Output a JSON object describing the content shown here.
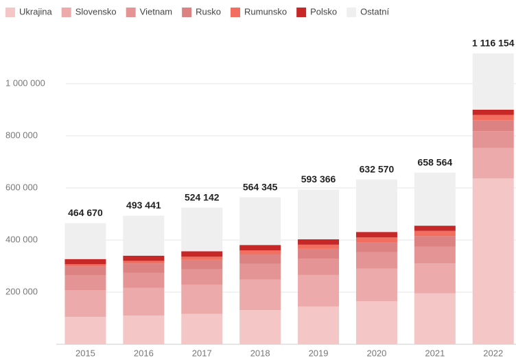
{
  "chart_data": {
    "type": "stacked-bar",
    "categories": [
      "2015",
      "2016",
      "2017",
      "2018",
      "2019",
      "2020",
      "2021",
      "2022"
    ],
    "series": [
      {
        "name": "Ukrajina",
        "color": "#f4c6c6",
        "values": [
          105000,
          110000,
          117000,
          131000,
          145000,
          165000,
          196000,
          636000
        ]
      },
      {
        "name": "Slovensko",
        "color": "#ecaaaa",
        "values": [
          102000,
          107000,
          112000,
          117000,
          121000,
          125000,
          114000,
          117000
        ]
      },
      {
        "name": "Vietnam",
        "color": "#e49494",
        "values": [
          57000,
          58000,
          59000,
          61000,
          62000,
          63000,
          64000,
          65000
        ]
      },
      {
        "name": "Rusko",
        "color": "#dc8282",
        "values": [
          35000,
          35000,
          36000,
          37000,
          38000,
          39000,
          41000,
          42000
        ]
      },
      {
        "name": "Rumunsko",
        "color": "#f26e5e",
        "values": [
          8000,
          10000,
          12000,
          14000,
          16000,
          18000,
          20000,
          20000
        ]
      },
      {
        "name": "Polsko",
        "color": "#c62828",
        "values": [
          20000,
          20000,
          21000,
          21000,
          21000,
          21000,
          20000,
          20000
        ]
      },
      {
        "name": "Ostatní",
        "color": "#efefef",
        "values": [
          137670,
          153441,
          167142,
          183345,
          190366,
          201570,
          203564,
          216154
        ]
      }
    ],
    "totals": [
      464670,
      493441,
      524142,
      564345,
      593366,
      632570,
      658564,
      1116154
    ],
    "total_labels": [
      "464 670",
      "493 441",
      "524 142",
      "564 345",
      "593 366",
      "632 570",
      "658 564",
      "1 116 154"
    ],
    "ylim": [
      0,
      1200000
    ],
    "yticks": [
      {
        "value": 200000,
        "label": "200 000"
      },
      {
        "value": 400000,
        "label": "400 000"
      },
      {
        "value": 600000,
        "label": "600 000"
      },
      {
        "value": 800000,
        "label": "800 000"
      },
      {
        "value": 1000000,
        "label": "1 000 000"
      }
    ],
    "grid": true
  }
}
